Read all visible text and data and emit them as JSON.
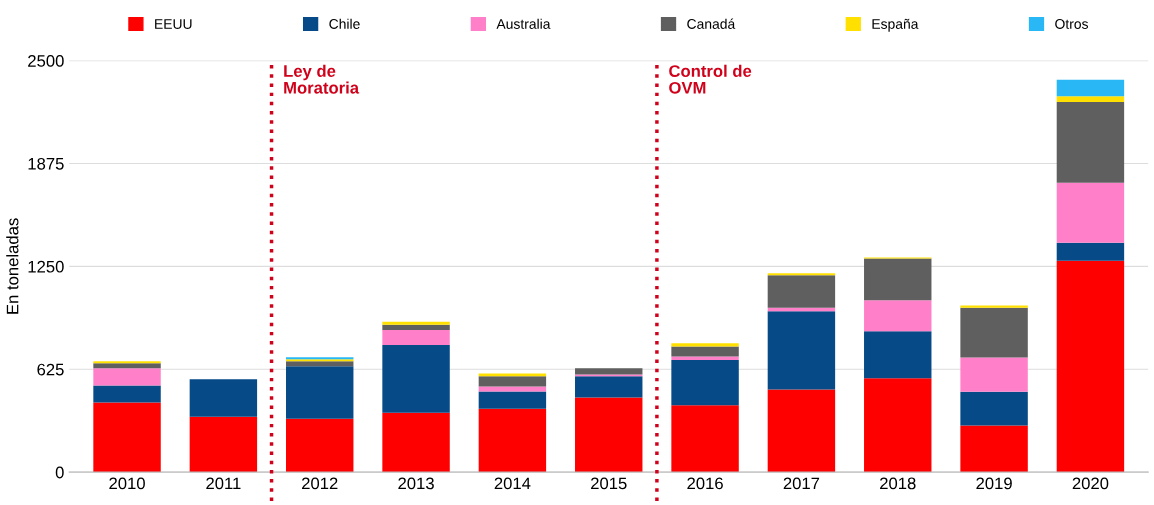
{
  "chart_data": {
    "type": "bar",
    "stacked": true,
    "ylabel": "En toneladas",
    "categories": [
      "2010",
      "2011",
      "2012",
      "2013",
      "2014",
      "2015",
      "2016",
      "2017",
      "2018",
      "2019",
      "2020"
    ],
    "series": [
      {
        "name": "EEUU",
        "color": "#ff0000",
        "values": [
          423,
          337,
          325,
          361,
          386,
          453,
          406,
          502,
          570,
          284,
          1285
        ]
      },
      {
        "name": "Chile",
        "color": "#064a87",
        "values": [
          104,
          227,
          318,
          411,
          104,
          129,
          276,
          476,
          286,
          204,
          108
        ]
      },
      {
        "name": "Australia",
        "color": "#ff80c8",
        "values": [
          104,
          0,
          0,
          92,
          31,
          12,
          20,
          20,
          188,
          208,
          365
        ]
      },
      {
        "name": "Canadá",
        "color": "#5f5f5f",
        "values": [
          31,
          0,
          31,
          31,
          61,
          37,
          61,
          198,
          254,
          303,
          490
        ]
      },
      {
        "name": "España",
        "color": "#ffe000",
        "values": [
          12,
          0,
          12,
          18,
          18,
          0,
          20,
          12,
          6,
          14,
          35
        ]
      },
      {
        "name": "Otros",
        "color": "#2ab7f5",
        "values": [
          0,
          0,
          12,
          0,
          0,
          0,
          0,
          0,
          0,
          0,
          101
        ]
      }
    ],
    "ylim": [
      0,
      2500
    ],
    "yticks": [
      0,
      625,
      1250,
      1875,
      2500
    ],
    "grid": "y",
    "legend": "top",
    "annotations": [
      "Ley de\nMoratoria",
      "Control de\nOVM"
    ]
  }
}
